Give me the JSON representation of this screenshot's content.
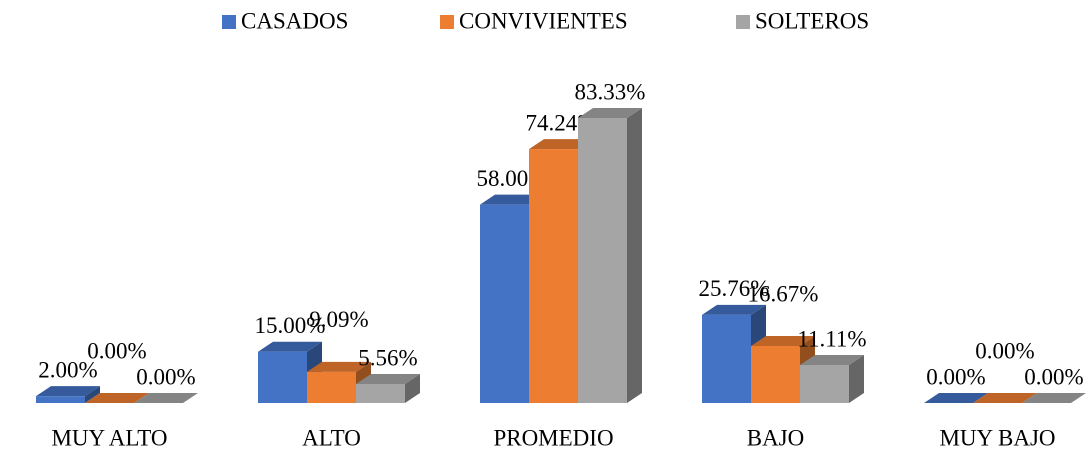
{
  "chart_data": {
    "type": "bar3d",
    "categories": [
      "MUY ALTO",
      "ALTO",
      "PROMEDIO",
      "BAJO",
      "MUY BAJO"
    ],
    "series": [
      {
        "name": "CASADOS",
        "color": "#4472c4",
        "values": [
          2.0,
          15.0,
          58.0,
          25.76,
          0.0
        ],
        "value_labels": [
          "2.00%",
          "15.00%",
          "58.00%",
          "25.76%",
          "0.00%"
        ]
      },
      {
        "name": "CONVIVIENTES",
        "color": "#ed7d31",
        "values": [
          0.0,
          9.09,
          74.24,
          16.67,
          0.0
        ],
        "value_labels": [
          "0.00%",
          "9.09%",
          "74.24%",
          "16.67%",
          "0.00%"
        ]
      },
      {
        "name": "SOLTEROS",
        "color": "#a5a5a5",
        "values": [
          0.0,
          5.56,
          83.33,
          11.11,
          0.0
        ],
        "value_labels": [
          "0.00%",
          "5.56%",
          "83.33%",
          "11.11%",
          "0.00%"
        ]
      }
    ],
    "legend": "top"
  }
}
